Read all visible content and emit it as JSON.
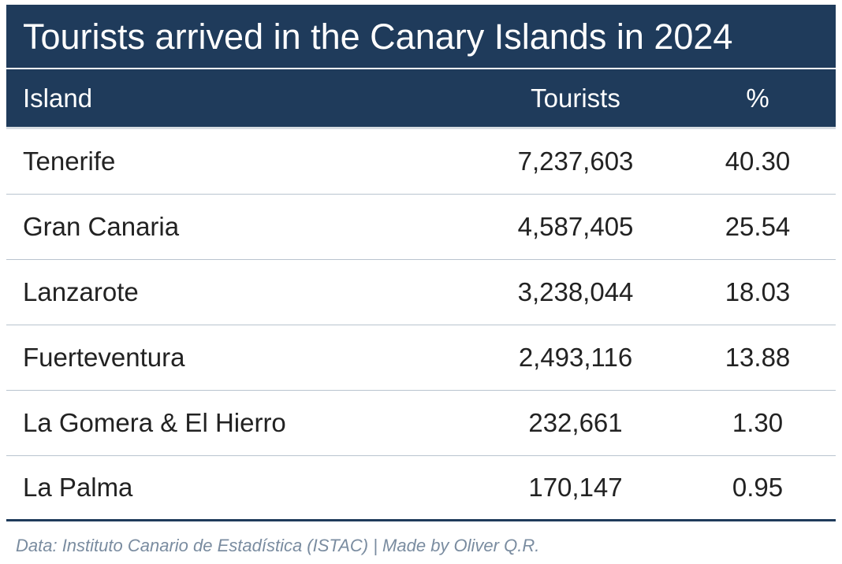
{
  "title": "Tourists arrived in the Canary Islands in 2024",
  "caption": "Data: Instituto Canario de Estadística (ISTAC) | Made by Oliver Q.R.",
  "colors": {
    "header_bg": "#1f3b5b",
    "header_text": "#ffffff",
    "row_divider": "#b9c4cf",
    "caption_text": "#7a8ca0"
  },
  "chart_data": {
    "type": "table",
    "title": "Tourists arrived in the Canary Islands in 2024",
    "columns": [
      "Island",
      "Tourists",
      "%"
    ],
    "rows": [
      [
        "Tenerife",
        "7,237,603",
        "40.30"
      ],
      [
        "Gran Canaria",
        "4,587,405",
        "25.54"
      ],
      [
        "Lanzarote",
        "3,238,044",
        "18.03"
      ],
      [
        "Fuerteventura",
        "2,493,116",
        "13.88"
      ],
      [
        "La Gomera & El Hierro",
        "232,661",
        "1.30"
      ],
      [
        "La Palma",
        "170,147",
        "0.95"
      ]
    ]
  }
}
